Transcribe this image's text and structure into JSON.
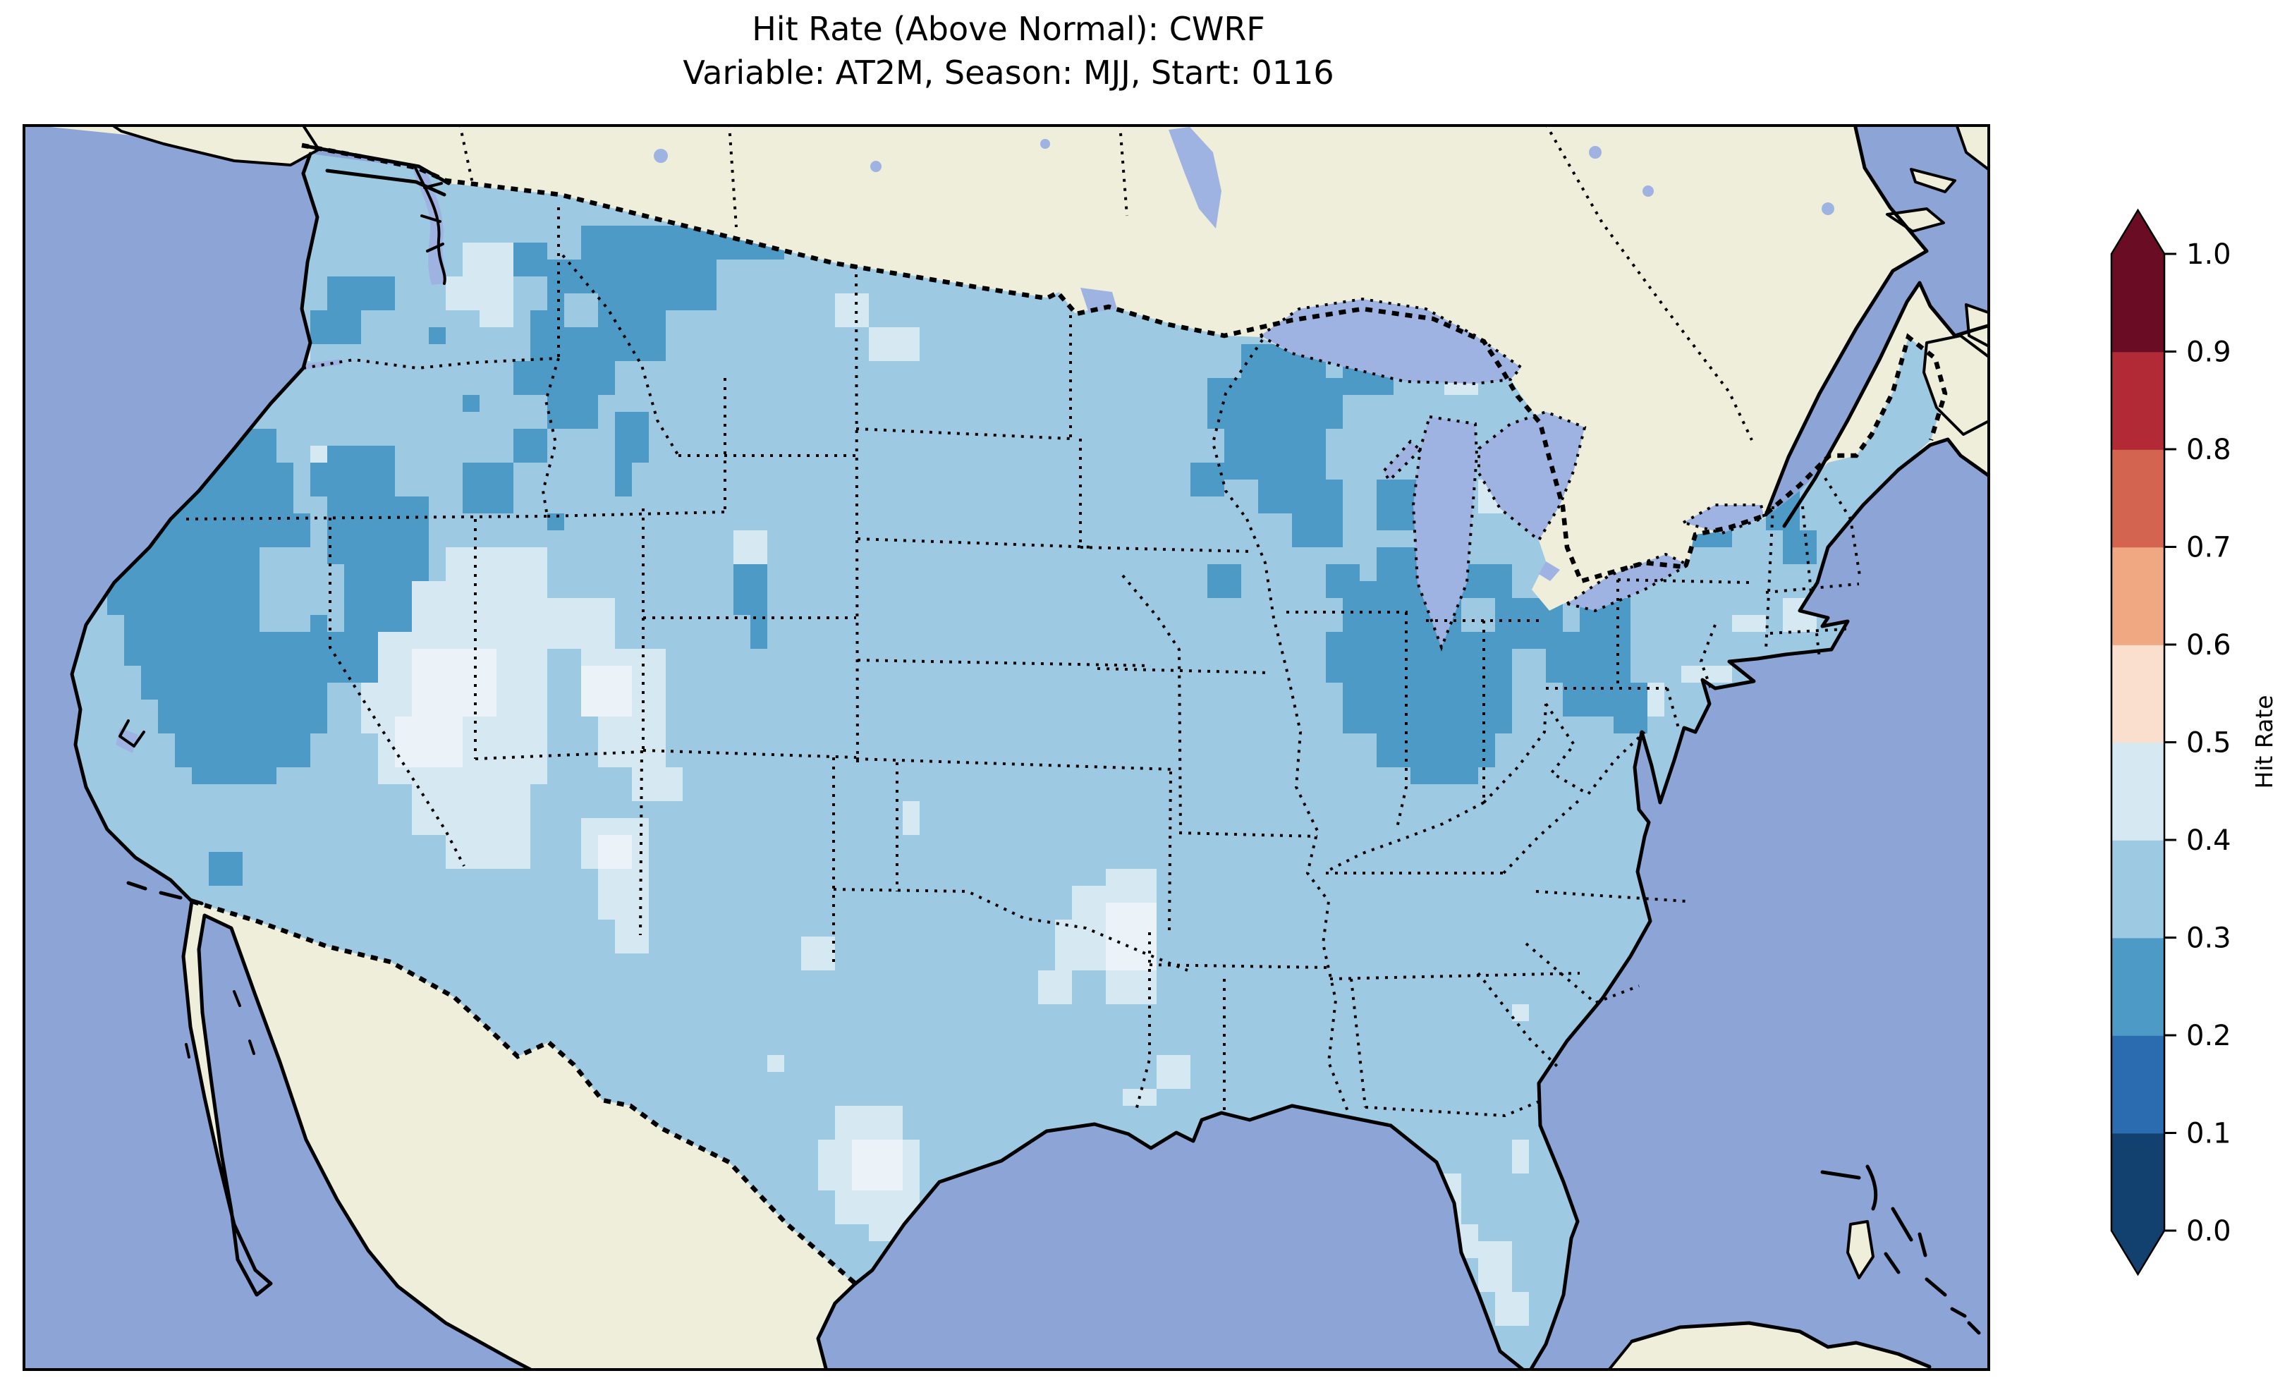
{
  "figure": {
    "title_line1": "Hit Rate (Above Normal): CWRF",
    "title_line2": "Variable: AT2M, Season: MJJ, Start: 0116",
    "background_color": "#ffffff"
  },
  "chart_data": {
    "type": "heatmap",
    "title": "Hit Rate (Above Normal): CWRF",
    "subtitle": "Variable: AT2M, Season: MJJ, Start: 0116",
    "model": "CWRF",
    "variable": "AT2M",
    "season": "MJJ",
    "start": "0116",
    "metric": "Hit Rate",
    "category": "Above Normal",
    "map_region": "Continental United States (data masked outside CONUS)",
    "projection": "Lambert-conformal style (curved parallels)",
    "value_range_shown": [
      0.2,
      0.5
    ],
    "palette": {
      "ocean": "#8da4d6",
      "lakes": "#9eb3e2",
      "land_no_data": "#eeeedb",
      "coastline": "#000000"
    },
    "colorbar": {
      "label": "Hit Rate",
      "orientation": "vertical",
      "extend": "both",
      "ticks": [
        "0.0",
        "0.1",
        "0.2",
        "0.3",
        "0.4",
        "0.5",
        "0.6",
        "0.7",
        "0.8",
        "0.9",
        "1.0"
      ],
      "over_color": "#690c24",
      "under_color": "#12406f",
      "bins": [
        {
          "range": "0.0-0.1",
          "color": "#12406f"
        },
        {
          "range": "0.1-0.2",
          "color": "#2b6cb0"
        },
        {
          "range": "0.2-0.3",
          "color": "#4e9ac7"
        },
        {
          "range": "0.3-0.4",
          "color": "#9dcae2"
        },
        {
          "range": "0.4-0.5",
          "color": "#d6e8f2"
        },
        {
          "range": "0.5-0.6",
          "color": "#fadfce"
        },
        {
          "range": "0.6-0.7",
          "color": "#f0a882"
        },
        {
          "range": "0.7-0.8",
          "color": "#d26450"
        },
        {
          "range": "0.8-0.9",
          "color": "#b12a35"
        },
        {
          "range": "0.9-1.0",
          "color": "#690c24"
        }
      ]
    },
    "regions_by_bin": {
      "0.2-0.3": [
        "Northern California and Nevada",
        "Western Montana",
        "Northeast Oregon",
        "Central Utah",
        "Colorado strip",
        "Minnesota and NW Wisconsin",
        "SD-NE border cells",
        "Southern Indiana / Kentucky / Ohio Valley",
        "West Virginia fringe",
        "Eastern Virginia (Chesapeake)",
        "Upstate New York / N Pennsylvania / W New England",
        "Central Maine",
        "Yuma AZ border cells"
      ],
      "0.3-0.4": [
        "Base value over most of CONUS"
      ],
      "0.4-0.5": [
        "Central Washington",
        "Eastern Arizona / Western New Mexico",
        "West Texas",
        "South Texas (Corpus Christi)",
        "Central Mississippi / W Alabama",
        "Eastern Arkansas",
        "Tampa Bay and South Florida",
        "Coastal New England / Long Island",
        "Upper Michigan shore",
        "Western North Dakota spots",
        "Oklahoma spots"
      ]
    },
    "map_patches": {
      "cell_size_px": 24,
      "base": {
        "bin": "0.3-0.4",
        "color": "#9dcae2"
      },
      "bin_02_03": {
        "bin": "0.2-0.3",
        "color": "#4e9ac7",
        "cells": [
          [
            33,
            6,
            12,
            2
          ],
          [
            31,
            8,
            10,
            3
          ],
          [
            30,
            11,
            8,
            3
          ],
          [
            29,
            14,
            6,
            2
          ],
          [
            31,
            16,
            3,
            2
          ],
          [
            27,
            7,
            4,
            2
          ],
          [
            18,
            9,
            4,
            2
          ],
          [
            17,
            11,
            3,
            2
          ],
          [
            9,
            16,
            4,
            2
          ],
          [
            8,
            18,
            7,
            2
          ],
          [
            7,
            20,
            9,
            3
          ],
          [
            6,
            23,
            11,
            3
          ],
          [
            5,
            26,
            12,
            3
          ],
          [
            6,
            29,
            12,
            3
          ],
          [
            7,
            32,
            11,
            2
          ],
          [
            8,
            34,
            10,
            2
          ],
          [
            9,
            36,
            8,
            2
          ],
          [
            10,
            38,
            5,
            1
          ],
          [
            17,
            19,
            5,
            3
          ],
          [
            18,
            22,
            6,
            4
          ],
          [
            19,
            26,
            5,
            4
          ],
          [
            18,
            30,
            4,
            3
          ],
          [
            26,
            20,
            3,
            3
          ],
          [
            29,
            18,
            2,
            2
          ],
          [
            31,
            23,
            1,
            1
          ],
          [
            35,
            17,
            2,
            3
          ],
          [
            35,
            20,
            1,
            2
          ],
          [
            24,
            12,
            1,
            1
          ],
          [
            26,
            16,
            1,
            1
          ],
          [
            42,
            26,
            2,
            3
          ],
          [
            43,
            29,
            1,
            2
          ],
          [
            72,
            13,
            5,
            2
          ],
          [
            70,
            15,
            8,
            3
          ],
          [
            71,
            18,
            6,
            3
          ],
          [
            73,
            21,
            5,
            2
          ],
          [
            75,
            23,
            3,
            2
          ],
          [
            69,
            20,
            2,
            2
          ],
          [
            70,
            26,
            2,
            2
          ],
          [
            77,
            26,
            2,
            2
          ],
          [
            78,
            14,
            3,
            2
          ],
          [
            80,
            21,
            3,
            3
          ],
          [
            80,
            25,
            4,
            2
          ],
          [
            78,
            27,
            7,
            3
          ],
          [
            77,
            30,
            11,
            3
          ],
          [
            78,
            33,
            10,
            3
          ],
          [
            80,
            36,
            7,
            2
          ],
          [
            82,
            38,
            4,
            1
          ],
          [
            85,
            26,
            3,
            2
          ],
          [
            87,
            28,
            4,
            3
          ],
          [
            90,
            31,
            3,
            2
          ],
          [
            91,
            33,
            2,
            2
          ],
          [
            92,
            28,
            3,
            2
          ],
          [
            91,
            30,
            4,
            3
          ],
          [
            93,
            33,
            3,
            2
          ],
          [
            94,
            35,
            2,
            1
          ],
          [
            95,
            12,
            4,
            2
          ],
          [
            93,
            14,
            7,
            3
          ],
          [
            94,
            17,
            6,
            3
          ],
          [
            96,
            20,
            5,
            3
          ],
          [
            98,
            23,
            3,
            2
          ],
          [
            101,
            14,
            3,
            3
          ],
          [
            102,
            17,
            3,
            4
          ],
          [
            103,
            21,
            2,
            3
          ],
          [
            104,
            24,
            2,
            2
          ],
          [
            106,
            7,
            3,
            2
          ],
          [
            105,
            9,
            4,
            3
          ],
          [
            107,
            12,
            2,
            2
          ],
          [
            11,
            43,
            2,
            2
          ]
        ]
      },
      "bin_04_05": {
        "bin": "0.4-0.5",
        "color": "#d6e8f2",
        "cells": [
          [
            26,
            7,
            3,
            2
          ],
          [
            25,
            9,
            4,
            2
          ],
          [
            27,
            11,
            2,
            1
          ],
          [
            16,
            13,
            1,
            1
          ],
          [
            17,
            19,
            1,
            1
          ],
          [
            25,
            25,
            6,
            2
          ],
          [
            23,
            27,
            8,
            3
          ],
          [
            21,
            30,
            10,
            3
          ],
          [
            20,
            33,
            11,
            3
          ],
          [
            21,
            36,
            10,
            3
          ],
          [
            23,
            39,
            7,
            3
          ],
          [
            25,
            42,
            5,
            2
          ],
          [
            31,
            28,
            4,
            3
          ],
          [
            33,
            31,
            5,
            4
          ],
          [
            34,
            35,
            4,
            3
          ],
          [
            36,
            38,
            3,
            2
          ],
          [
            33,
            41,
            4,
            3
          ],
          [
            34,
            44,
            3,
            3
          ],
          [
            35,
            47,
            2,
            2
          ],
          [
            29,
            26,
            2,
            2
          ],
          [
            52,
            40,
            1,
            2
          ],
          [
            46,
            48,
            2,
            2
          ],
          [
            48,
            58,
            4,
            2
          ],
          [
            47,
            60,
            6,
            3
          ],
          [
            48,
            63,
            5,
            2
          ],
          [
            50,
            65,
            2,
            1
          ],
          [
            44,
            55,
            1,
            1
          ],
          [
            64,
            44,
            3,
            3
          ],
          [
            63,
            47,
            4,
            3
          ],
          [
            64,
            50,
            3,
            2
          ],
          [
            62,
            45,
            2,
            2
          ],
          [
            61,
            47,
            2,
            3
          ],
          [
            60,
            50,
            2,
            2
          ],
          [
            67,
            55,
            2,
            2
          ],
          [
            65,
            57,
            2,
            1
          ],
          [
            83,
            62,
            2,
            3
          ],
          [
            84,
            65,
            2,
            2
          ],
          [
            86,
            66,
            2,
            3
          ],
          [
            87,
            69,
            2,
            2
          ],
          [
            88,
            60,
            1,
            2
          ],
          [
            88,
            52,
            1,
            1
          ],
          [
            98,
            32,
            3,
            1
          ],
          [
            104,
            28,
            2,
            2
          ],
          [
            101,
            29,
            2,
            1
          ],
          [
            96,
            33,
            1,
            2
          ],
          [
            80,
            11,
            3,
            2
          ],
          [
            84,
            14,
            2,
            2
          ],
          [
            50,
            12,
            3,
            2
          ],
          [
            48,
            10,
            2,
            2
          ],
          [
            42,
            24,
            2,
            2
          ],
          [
            86,
            21,
            2,
            2
          ]
        ]
      },
      "lightest": {
        "bin": "0.4-0.5 (lightest cells)",
        "color": "#ebf3f8",
        "cells": [
          [
            23,
            31,
            5,
            4
          ],
          [
            22,
            35,
            4,
            3
          ],
          [
            33,
            32,
            3,
            3
          ],
          [
            34,
            42,
            2,
            2
          ],
          [
            49,
            60,
            3,
            3
          ],
          [
            64,
            46,
            3,
            4
          ]
        ]
      },
      "base_notches": {
        "bin": "0.3-0.4 (holes inside dark areas)",
        "color": "#9dcae2",
        "cells": [
          [
            14,
            25,
            3,
            5
          ],
          [
            32,
            10,
            2,
            2
          ]
        ]
      }
    }
  }
}
